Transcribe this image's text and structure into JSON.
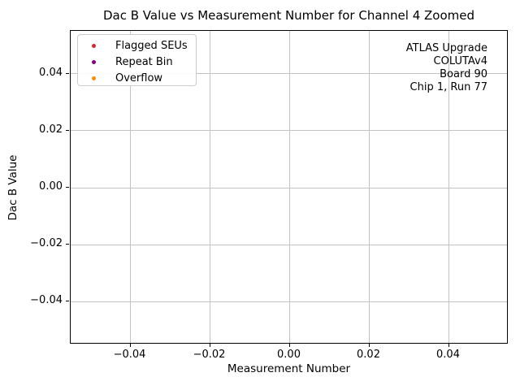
{
  "chart_data": {
    "type": "scatter",
    "title": "Dac B Value vs Measurement Number for Channel 4 Zoomed",
    "xlabel": "Measurement Number",
    "ylabel": "Dac B Value",
    "xlim": [
      -0.055,
      0.055
    ],
    "ylim": [
      -0.055,
      0.055
    ],
    "x_ticks": [
      -0.04,
      -0.02,
      0.0,
      0.02,
      0.04
    ],
    "y_ticks": [
      -0.04,
      -0.02,
      0.0,
      0.02,
      0.04
    ],
    "x_tick_labels": [
      "−0.04",
      "−0.02",
      "0.00",
      "0.02",
      "0.04"
    ],
    "y_tick_labels": [
      "−0.04",
      "−0.02",
      "0.00",
      "0.02",
      "0.04"
    ],
    "grid": true,
    "grid_color": "#c3c3c3",
    "legend_position": "upper left",
    "series": [
      {
        "name": "Flagged SEUs",
        "color": "#d62728",
        "points": []
      },
      {
        "name": "Repeat Bin",
        "color": "#800080",
        "points": []
      },
      {
        "name": "Overflow",
        "color": "#ff8c00",
        "points": []
      }
    ],
    "annotation": {
      "align": "right",
      "lines": [
        "ATLAS Upgrade",
        "COLUTAv4",
        "Board 90",
        "Chip 1, Run 77"
      ]
    }
  }
}
